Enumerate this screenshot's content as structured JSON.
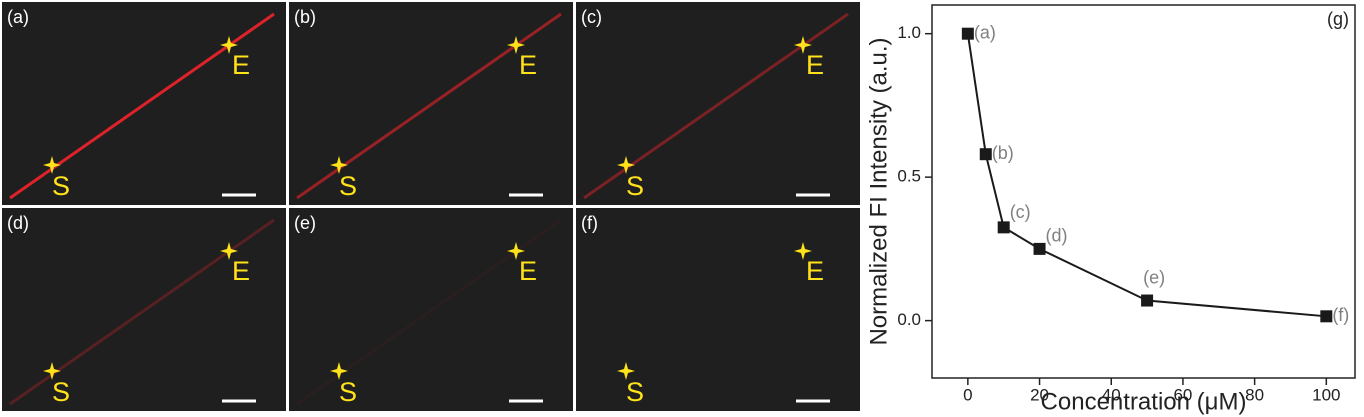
{
  "panels": [
    {
      "label": "(a)",
      "start": "S",
      "end": "E"
    },
    {
      "label": "(b)",
      "start": "S",
      "end": "E"
    },
    {
      "label": "(c)",
      "start": "S",
      "end": "E"
    },
    {
      "label": "(d)",
      "start": "S",
      "end": "E"
    },
    {
      "label": "(e)",
      "start": "S",
      "end": "E"
    },
    {
      "label": "(f)",
      "start": "S",
      "end": "E"
    }
  ],
  "chart_data": {
    "type": "line",
    "x_label": "Concentration (μM)",
    "y_label": "Normalized FI Intensity (a.u.)",
    "annotation": "(g)",
    "x": [
      0,
      5,
      10,
      20,
      50,
      100
    ],
    "values": [
      1.0,
      0.58,
      0.325,
      0.25,
      0.07,
      0.015
    ],
    "point_labels": [
      "(a)",
      "(b)",
      "(c)",
      "(d)",
      "(e)",
      "(f)"
    ],
    "color": "#1a1a1a",
    "label_color": "#808080",
    "xlim": [
      -10,
      108
    ],
    "ylim": [
      -0.2,
      1.1
    ],
    "xticks": [
      0,
      20,
      40,
      60,
      80,
      100
    ],
    "yticks": [
      {
        "value": 0,
        "label": "0.0"
      },
      {
        "value": 0.5,
        "label": "0.5"
      },
      {
        "value": 1,
        "label": "1.0"
      }
    ]
  }
}
